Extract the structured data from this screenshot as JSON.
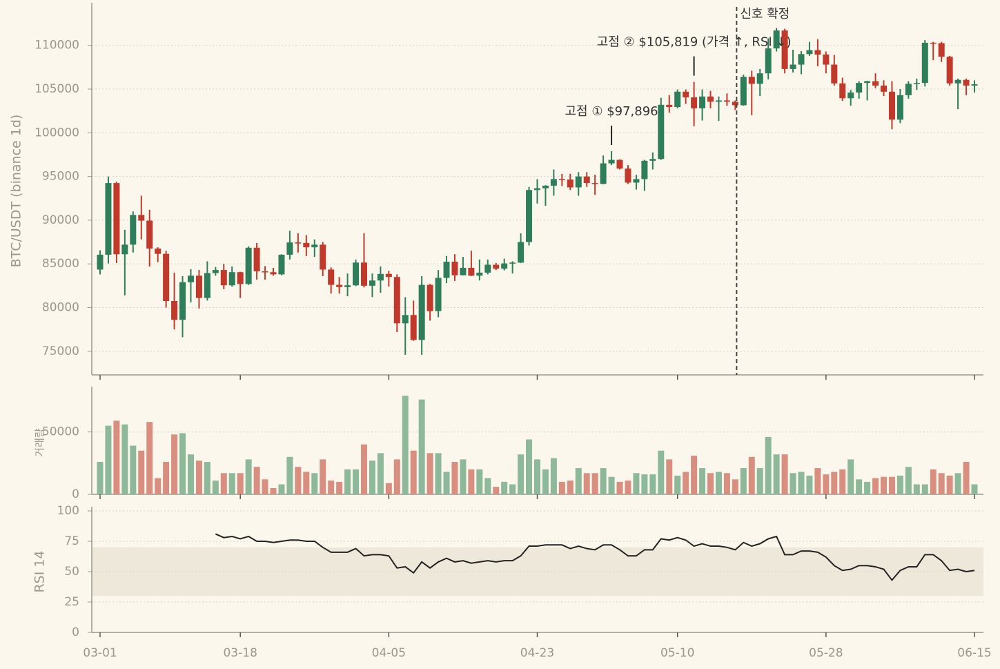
{
  "chart_data": [
    {
      "type": "candlestick",
      "ylabel": "BTC/USDT (binance 1d)",
      "up_color": "#2e7d5b",
      "down_color": "#c0392b",
      "x": [
        "03-01",
        "03-02",
        "03-03",
        "03-04",
        "03-05",
        "03-06",
        "03-07",
        "03-08",
        "03-09",
        "03-10",
        "03-11",
        "03-12",
        "03-13",
        "03-14",
        "03-15",
        "03-16",
        "03-17",
        "03-18",
        "03-19",
        "03-20",
        "03-21",
        "03-22",
        "03-23",
        "03-24",
        "03-25",
        "03-26",
        "03-27",
        "03-28",
        "03-29",
        "03-30",
        "03-31",
        "04-01",
        "04-02",
        "04-03",
        "04-04",
        "04-05",
        "04-06",
        "04-07",
        "04-08",
        "04-09",
        "04-10",
        "04-11",
        "04-12",
        "04-13",
        "04-14",
        "04-15",
        "04-16",
        "04-17",
        "04-18",
        "04-19",
        "04-20",
        "04-21",
        "04-22",
        "04-23",
        "04-24",
        "04-25",
        "04-26",
        "04-27",
        "04-28",
        "04-29",
        "04-30",
        "05-01",
        "05-02",
        "05-03",
        "05-04",
        "05-05",
        "05-06",
        "05-07",
        "05-08",
        "05-09",
        "05-10",
        "05-11",
        "05-12",
        "05-13",
        "05-14",
        "05-15",
        "05-16",
        "05-17",
        "05-18",
        "05-19",
        "05-20",
        "05-21",
        "05-22",
        "05-23",
        "05-24",
        "05-25",
        "05-26",
        "05-27",
        "05-28",
        "05-29",
        "05-30",
        "05-31",
        "06-01",
        "06-02",
        "06-03",
        "06-04",
        "06-05",
        "06-06",
        "06-07",
        "06-08",
        "06-09",
        "06-10",
        "06-11",
        "06-12",
        "06-13",
        "06-14",
        "06-15"
      ],
      "open": [
        84350,
        86050,
        94250,
        86100,
        87200,
        90600,
        89950,
        86750,
        86150,
        80750,
        78600,
        82900,
        83650,
        81100,
        83950,
        84300,
        82550,
        84050,
        82700,
        86850,
        84150,
        84050,
        83800,
        86050,
        87450,
        87400,
        86900,
        87200,
        84350,
        82600,
        82350,
        82550,
        85150,
        82500,
        83100,
        83850,
        83500,
        78200,
        79150,
        76300,
        82600,
        79600,
        83400,
        85250,
        83700,
        84550,
        83650,
        84000,
        84900,
        84450,
        85050,
        85150,
        87500,
        93450,
        93650,
        93950,
        94700,
        94650,
        93750,
        95000,
        94250,
        94150,
        96500,
        96900,
        95900,
        94300,
        94700,
        96800,
        97000,
        103200,
        102950,
        104700,
        104050,
        102800,
        104150,
        103550,
        103700,
        103550,
        103150,
        106400,
        105600,
        106800,
        109650,
        111700,
        107300,
        107800,
        109000,
        109450,
        108950,
        107800,
        105650,
        103950,
        104600,
        105700,
        105900,
        105400,
        104700,
        101500,
        104300,
        105600,
        105700,
        110300,
        110250,
        108700,
        105650,
        106050,
        105400
      ],
      "high": [
        86550,
        95000,
        94400,
        88900,
        91000,
        92800,
        91200,
        86900,
        86500,
        84000,
        83600,
        84400,
        84300,
        85300,
        84650,
        85000,
        84700,
        84100,
        87000,
        87400,
        84750,
        84550,
        86100,
        88800,
        88500,
        88300,
        87800,
        87500,
        84600,
        83500,
        83900,
        85500,
        88500,
        83900,
        84700,
        84200,
        83800,
        81200,
        80800,
        83600,
        82700,
        84300,
        85900,
        86100,
        85800,
        86500,
        85500,
        85500,
        85100,
        85600,
        85300,
        88500,
        93800,
        94700,
        94000,
        95800,
        95300,
        95300,
        95500,
        95500,
        95200,
        97400,
        97896,
        96950,
        96300,
        95200,
        96900,
        97750,
        104000,
        104300,
        104950,
        104950,
        105819,
        104950,
        104800,
        104150,
        104500,
        103700,
        106650,
        107100,
        107300,
        110800,
        112000,
        111900,
        109500,
        109350,
        110400,
        110700,
        109300,
        108900,
        106300,
        104900,
        105900,
        105950,
        106800,
        106000,
        105900,
        105000,
        105900,
        106200,
        110600,
        110400,
        110400,
        108800,
        106200,
        106200,
        106000
      ],
      "low": [
        83800,
        85050,
        85100,
        81400,
        86300,
        87800,
        84700,
        85200,
        80000,
        77500,
        76600,
        80600,
        79900,
        80800,
        83650,
        82100,
        82400,
        81100,
        82600,
        83200,
        83200,
        83650,
        83700,
        85500,
        86300,
        85900,
        85800,
        83600,
        81600,
        81600,
        81300,
        82450,
        82300,
        81200,
        81700,
        82400,
        77200,
        74600,
        76200,
        74600,
        78500,
        78900,
        82800,
        83050,
        83700,
        83600,
        83100,
        83800,
        84300,
        84250,
        83900,
        85100,
        87100,
        91900,
        91650,
        92800,
        93900,
        93450,
        92800,
        93800,
        92900,
        94100,
        96300,
        95800,
        94150,
        93500,
        93350,
        95800,
        96900,
        102300,
        102800,
        103300,
        100750,
        101400,
        102800,
        101350,
        103100,
        102600,
        103100,
        102000,
        104200,
        106100,
        109300,
        106800,
        106900,
        106700,
        108800,
        107600,
        106800,
        105400,
        103650,
        103100,
        103900,
        103700,
        105100,
        104200,
        100400,
        101100,
        103900,
        104900,
        105300,
        108300,
        108100,
        105400,
        102700,
        104300,
        104600
      ],
      "close": [
        86050,
        94250,
        86100,
        87200,
        90600,
        89950,
        86750,
        86150,
        80750,
        78600,
        82900,
        83650,
        81100,
        83950,
        84300,
        82550,
        84050,
        82700,
        86850,
        84150,
        84050,
        83800,
        86050,
        87450,
        87400,
        86900,
        87200,
        84350,
        82600,
        82350,
        82550,
        85150,
        82500,
        83100,
        83850,
        83500,
        78200,
        79150,
        76300,
        82600,
        79600,
        83400,
        85250,
        83700,
        84550,
        83650,
        84000,
        84900,
        84450,
        85050,
        85150,
        87500,
        93450,
        93650,
        93950,
        94700,
        94650,
        93750,
        95000,
        94250,
        94150,
        96500,
        96900,
        95900,
        94300,
        94700,
        96800,
        97000,
        103200,
        102950,
        104700,
        104050,
        102800,
        104150,
        103550,
        103700,
        103550,
        103150,
        106400,
        105600,
        106800,
        109650,
        111700,
        107300,
        107800,
        109000,
        109450,
        108950,
        107800,
        105650,
        103950,
        104600,
        105700,
        105900,
        105400,
        104700,
        101500,
        104300,
        105600,
        105700,
        110300,
        110250,
        108700,
        105650,
        106050,
        105400,
        105550
      ],
      "ylim": [
        72300,
        114400
      ],
      "yticks": [
        75000,
        80000,
        85000,
        90000,
        95000,
        100000,
        105000,
        110000
      ],
      "grid": true,
      "annotations": [
        {
          "text": "고점 ① $97,896",
          "x": "05-02",
          "y": 97896
        },
        {
          "text": "고점 ② $105,819 (가격 ↑, RSI ↓)",
          "x": "05-12",
          "y": 105819
        }
      ],
      "signal": {
        "text": "신호 확정",
        "x": "05-17"
      }
    },
    {
      "type": "bar",
      "ylabel": "거래량",
      "up_color": "#8db89a",
      "down_color": "#d98f80",
      "values": [
        26000,
        55000,
        59000,
        56000,
        39000,
        35000,
        58000,
        13000,
        26000,
        48000,
        49000,
        32000,
        27000,
        26000,
        11000,
        17000,
        17000,
        17000,
        28000,
        22000,
        12000,
        5000,
        8000,
        30000,
        22000,
        18000,
        17000,
        28000,
        11000,
        10000,
        20000,
        20000,
        40000,
        27000,
        33000,
        9000,
        28000,
        79000,
        35000,
        76000,
        33000,
        33000,
        18000,
        26000,
        28000,
        20000,
        20000,
        13000,
        6000,
        10000,
        8000,
        32000,
        44000,
        28000,
        20000,
        29000,
        10000,
        11000,
        21000,
        17000,
        17000,
        21000,
        14000,
        10000,
        11000,
        17000,
        16000,
        16000,
        35000,
        28000,
        15000,
        18000,
        31000,
        21000,
        17000,
        18000,
        17000,
        12000,
        21000,
        30000,
        21000,
        46000,
        32000,
        32000,
        17000,
        18000,
        15000,
        21000,
        16000,
        18000,
        20000,
        28000,
        12000,
        10000,
        13000,
        14000,
        14000,
        15000,
        22000,
        8000,
        8000,
        20000,
        17000,
        15000,
        17000,
        26000,
        8000
      ],
      "ylim": [
        0,
        83000
      ],
      "yticks": [
        0,
        50000
      ],
      "grid": true
    },
    {
      "type": "line",
      "ylabel": "RSI 14",
      "color": "#222222",
      "band": [
        30,
        70
      ],
      "band_color": "#ede8da",
      "values": [
        null,
        null,
        null,
        null,
        null,
        null,
        null,
        null,
        null,
        null,
        null,
        null,
        null,
        null,
        81,
        78,
        79,
        77,
        79,
        75,
        75,
        74,
        75,
        76,
        76,
        75,
        75,
        70,
        66,
        66,
        66,
        69,
        63,
        64,
        64,
        63,
        53,
        54,
        49,
        58,
        53,
        58,
        61,
        58,
        59,
        57,
        58,
        59,
        58,
        59,
        59,
        63,
        71,
        71,
        72,
        72,
        72,
        69,
        71,
        69,
        68,
        72,
        72,
        68,
        63,
        63,
        68,
        68,
        77,
        76,
        78,
        76,
        71,
        73,
        71,
        71,
        70,
        68,
        74,
        71,
        73,
        77,
        79,
        64,
        64,
        67,
        67,
        66,
        62,
        55,
        51,
        52,
        55,
        55,
        54,
        52,
        43,
        51,
        54,
        54,
        64,
        64,
        59,
        51,
        52,
        50,
        51
      ],
      "ylim": [
        0,
        100
      ],
      "yticks": [
        0,
        25,
        50,
        75,
        100
      ],
      "grid": true,
      "xticks": [
        "03-01",
        "03-18",
        "04-05",
        "04-23",
        "05-10",
        "05-28",
        "06-15"
      ]
    }
  ]
}
